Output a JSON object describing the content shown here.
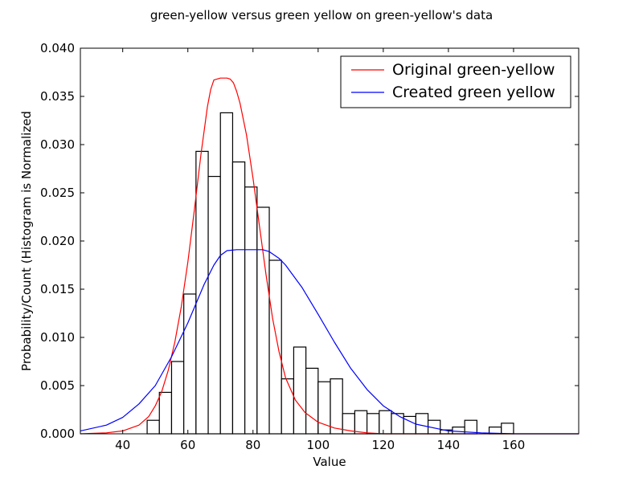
{
  "chart_data": {
    "type": "bar",
    "title": "green-yellow versus green yellow on green-yellow's data",
    "xlabel": "Value",
    "ylabel": "Probability/Count (Histogram is Normalized",
    "xlim": [
      27,
      180
    ],
    "ylim": [
      0,
      0.04
    ],
    "xticks": [
      40,
      60,
      80,
      100,
      120,
      140,
      160
    ],
    "xtick_labels": [
      "40",
      "60",
      "80",
      "100",
      "120",
      "140",
      "160"
    ],
    "yticks": [
      0,
      0.005,
      0.01,
      0.015,
      0.02,
      0.025,
      0.03,
      0.035,
      0.04
    ],
    "ytick_labels": [
      "0.000",
      "0.005",
      "0.010",
      "0.015",
      "0.020",
      "0.025",
      "0.030",
      "0.035",
      "0.040"
    ],
    "grid": false,
    "legend_position": "top-right",
    "histogram": {
      "bin_edges": [
        47.5,
        51.25,
        55.0,
        58.75,
        62.5,
        66.25,
        70.0,
        73.75,
        77.5,
        81.25,
        85.0,
        88.75,
        92.5,
        96.25,
        100.0,
        103.75,
        107.5,
        111.25,
        115.0,
        118.75,
        122.5,
        126.25,
        130.0,
        133.75,
        137.5,
        141.25,
        145.0,
        148.75,
        152.5,
        156.25,
        160.0
      ],
      "values": [
        0.0014,
        0.0043,
        0.0075,
        0.0145,
        0.0293,
        0.0267,
        0.0333,
        0.0282,
        0.0256,
        0.0235,
        0.018,
        0.0057,
        0.009,
        0.0068,
        0.0054,
        0.0057,
        0.0021,
        0.0024,
        0.0021,
        0.0024,
        0.0021,
        0.0018,
        0.0021,
        0.0014,
        0.0004,
        0.0007,
        0.0014,
        0.0,
        0.0007,
        0.0011
      ],
      "fill": "#ffffff",
      "edge": "#000000"
    },
    "series": [
      {
        "name": "Original green-yellow",
        "color": "#ff0000",
        "x": [
          27,
          35,
          40,
          45,
          48,
          50,
          52,
          54,
          56,
          58,
          60,
          62,
          64,
          66,
          67,
          68,
          70,
          72,
          73,
          74,
          75,
          76,
          78,
          80,
          82,
          84,
          86,
          88,
          90,
          93,
          96,
          100,
          105,
          110,
          115,
          120,
          130,
          140,
          160,
          180
        ],
        "y": [
          0.0,
          0.0001,
          0.0003,
          0.0009,
          0.0018,
          0.0029,
          0.0044,
          0.0066,
          0.0095,
          0.0132,
          0.0178,
          0.0232,
          0.0289,
          0.0339,
          0.0357,
          0.0367,
          0.0369,
          0.0369,
          0.0368,
          0.0364,
          0.0355,
          0.0343,
          0.031,
          0.0265,
          0.0215,
          0.0165,
          0.012,
          0.0085,
          0.0058,
          0.0035,
          0.0022,
          0.0012,
          0.0006,
          0.0003,
          0.0001,
          0.0,
          0.0,
          0.0,
          0.0,
          0.0
        ]
      },
      {
        "name": "Created green yellow",
        "color": "#0000ff",
        "x": [
          27,
          35,
          40,
          45,
          50,
          55,
          60,
          65,
          68,
          70,
          72,
          75,
          78,
          80,
          83,
          85,
          88,
          90,
          95,
          100,
          105,
          110,
          115,
          120,
          125,
          130,
          140,
          150,
          160,
          170,
          180
        ],
        "y": [
          0.0003,
          0.0009,
          0.0017,
          0.0031,
          0.005,
          0.008,
          0.0115,
          0.0155,
          0.0175,
          0.0185,
          0.019,
          0.0191,
          0.0191,
          0.0191,
          0.0191,
          0.0189,
          0.0182,
          0.0175,
          0.0152,
          0.0124,
          0.0095,
          0.0068,
          0.0046,
          0.0029,
          0.0018,
          0.001,
          0.0003,
          0.0001,
          0.0,
          0.0,
          0.0
        ]
      }
    ]
  }
}
